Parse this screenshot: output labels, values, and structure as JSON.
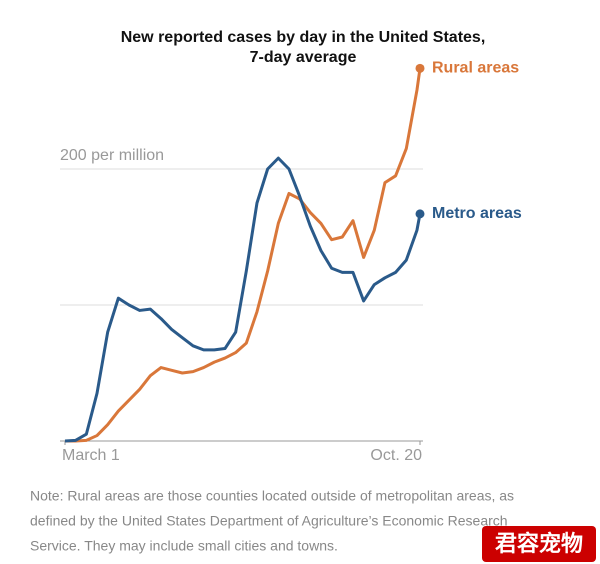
{
  "chart_data": {
    "type": "line",
    "title": [
      "New reported cases by day in the United States,",
      "7-day average"
    ],
    "x": [
      0,
      7,
      14,
      21,
      28,
      35,
      42,
      49,
      56,
      63,
      70,
      77,
      84,
      91,
      98,
      105,
      112,
      119,
      126,
      133,
      140,
      147,
      154,
      161,
      168,
      175,
      182,
      189,
      196,
      203,
      210,
      217,
      224,
      231,
      233
    ],
    "xlim": [
      0,
      233
    ],
    "xticks": [
      {
        "value": 0,
        "label": "March 1"
      },
      {
        "value": 233,
        "label": "Oct. 20"
      }
    ],
    "ylim": [
      0,
      280
    ],
    "yticks": [
      0,
      100,
      {
        "value": 200,
        "label": "200 per million"
      }
    ],
    "grid": true,
    "series": [
      {
        "name": "Rural areas",
        "color": "#d9773a",
        "values": [
          0,
          0,
          0.5,
          4,
          12,
          22,
          30,
          38,
          48,
          54,
          52,
          50,
          51,
          54,
          58,
          61,
          65,
          72,
          95,
          125,
          160,
          182,
          178,
          168,
          160,
          148,
          150,
          162,
          135,
          155,
          190,
          195,
          215,
          258,
          274
        ]
      },
      {
        "name": "Metro areas",
        "color": "#2a5a8a",
        "values": [
          0,
          0.5,
          5,
          35,
          80,
          105,
          100,
          96,
          97,
          90,
          82,
          76,
          70,
          67,
          67,
          68,
          80,
          125,
          175,
          200,
          208,
          200,
          180,
          158,
          140,
          127,
          124,
          124,
          103,
          115,
          120,
          124,
          133,
          155,
          167
        ]
      }
    ],
    "note_lines": [
      "Note: Rural areas are those counties located outside of metropolitan areas, as",
      "defined by the United States Department of Agriculture’s Economic Research",
      "Service. They may include small cities and towns."
    ]
  },
  "watermark": "君容宠物"
}
